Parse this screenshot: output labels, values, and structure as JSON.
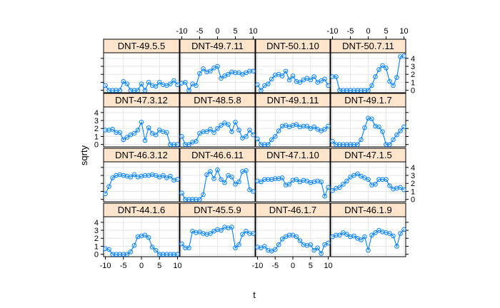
{
  "chart_data": {
    "type": "line",
    "xlabel": "t",
    "ylabel": "sqrty",
    "xlim": [
      -10.5,
      10.5
    ],
    "ylim": [
      -0.3,
      4.7
    ],
    "x_ticks": [
      -10,
      -5,
      0,
      5,
      10
    ],
    "y_ticks": [
      0,
      1,
      2,
      3,
      4
    ],
    "grid": true,
    "layout": {
      "rows": 4,
      "cols": 4
    },
    "colors": {
      "strip_bg": "#ffe5cc",
      "line": "#0080ff",
      "grid": "#e6e6e6"
    },
    "x": [
      -10,
      -9,
      -8,
      -7,
      -6,
      -5,
      -4,
      -3,
      -2,
      -1,
      0,
      1,
      2,
      3,
      4,
      5,
      6,
      7,
      8,
      9,
      10
    ],
    "panels": [
      {
        "name": "DNT-49.5.5",
        "values": [
          0.6,
          0,
          0,
          0,
          0,
          1.1,
          0.8,
          0,
          0,
          0,
          0.8,
          0,
          1.0,
          0.6,
          0.5,
          1.0,
          0.7,
          0.6,
          0.8,
          1.2,
          0.7
        ]
      },
      {
        "name": "DNT-49.7.11",
        "values": [
          0.9,
          1.0,
          0,
          0.8,
          0.6,
          2.1,
          2.7,
          2.3,
          2.4,
          2.8,
          3.0,
          1.5,
          1.8,
          2.0,
          2.3,
          2.2,
          2.2,
          2.0,
          2.2,
          2.4,
          2.4
        ]
      },
      {
        "name": "DNT-50.1.10",
        "values": [
          0.7,
          0,
          0.6,
          0.8,
          1.4,
          1.9,
          2.0,
          1.8,
          2.4,
          1.3,
          1.8,
          1.1,
          1.0,
          1.3,
          1.5,
          1.3,
          1.7,
          1.0,
          1.2,
          1.4,
          0.6
        ]
      },
      {
        "name": "DNT-50.7.11",
        "values": [
          1.7,
          1.7,
          0,
          0,
          0,
          0,
          0,
          0,
          0,
          0,
          0,
          0.6,
          1.7,
          2.6,
          3.1,
          2.8,
          1.1,
          0.6,
          1.6,
          4.2,
          4.3
        ]
      },
      {
        "name": "DNT-47.3.12",
        "values": [
          1.8,
          1.8,
          1.9,
          1.5,
          1.5,
          0.6,
          0.9,
          1.2,
          1.4,
          1.8,
          2.8,
          0.5,
          2.1,
          1.4,
          1.2,
          1.8,
          1.6,
          1.5,
          0,
          0,
          0
        ]
      },
      {
        "name": "DNT-48.5.8",
        "values": [
          1.0,
          0,
          0,
          0.3,
          0.4,
          1.4,
          1.6,
          1.6,
          1.9,
          1.5,
          2.0,
          2.4,
          2.7,
          2.5,
          1.6,
          2.8,
          1.8,
          0.8,
          1.0,
          1.8,
          1.2
        ]
      },
      {
        "name": "DNT-49.1.11",
        "values": [
          0.7,
          0,
          0,
          0,
          0.6,
          1.0,
          1.7,
          2.3,
          2.4,
          2.2,
          2.4,
          2.5,
          2.2,
          2.3,
          2.3,
          2.0,
          2.2,
          1.9,
          1.7,
          1.9,
          2.3
        ]
      },
      {
        "name": "DNT-49.1.7",
        "values": [
          0.4,
          0,
          0,
          0,
          0,
          0,
          0,
          0,
          0.6,
          2.1,
          3.3,
          3.2,
          2.3,
          2.2,
          1.6,
          0,
          0,
          0.6,
          1.2,
          1.7,
          2.2
        ]
      },
      {
        "name": "DNT-46.3.12",
        "values": [
          0.7,
          1.6,
          2.7,
          3.0,
          3.1,
          3.0,
          2.9,
          2.8,
          3.1,
          2.8,
          2.9,
          3.0,
          3.0,
          3.1,
          3.0,
          2.8,
          3.0,
          2.7,
          2.9,
          2.4,
          2.5
        ]
      },
      {
        "name": "DNT-46.6.11",
        "values": [
          0.8,
          0,
          0,
          0,
          0,
          0,
          0.6,
          3.1,
          3.5,
          2.6,
          3.7,
          2.5,
          2.1,
          3.0,
          2.8,
          1.9,
          2.2,
          3.5,
          3.6,
          1.2,
          1.0
        ]
      },
      {
        "name": "DNT-47.1.10",
        "values": [
          2.3,
          2.2,
          2.5,
          2.5,
          2.5,
          2.6,
          2.6,
          2.7,
          1.8,
          1.9,
          2.4,
          2.5,
          2.2,
          2.4,
          2.3,
          2.1,
          2.2,
          2.3,
          2.2,
          0.4,
          1.5
        ]
      },
      {
        "name": "DNT-47.1.5",
        "values": [
          1.1,
          1.4,
          1.5,
          1.9,
          2.3,
          2.8,
          3.0,
          3.2,
          2.9,
          2.7,
          2.5,
          1.8,
          1.9,
          2.5,
          2.5,
          2.5,
          1.7,
          1.3,
          1.4,
          1.5,
          1.2
        ]
      },
      {
        "name": "DNT-44.1.6",
        "values": [
          0.7,
          0.6,
          0,
          0,
          0,
          0,
          0,
          0.3,
          1.1,
          2.2,
          2.3,
          2.4,
          2.1,
          0.9,
          0.5,
          0,
          0,
          0,
          0,
          0,
          0
        ]
      },
      {
        "name": "DNT-45.5.9",
        "values": [
          1.3,
          0.8,
          0.8,
          2.9,
          2.7,
          2.8,
          2.6,
          2.5,
          2.6,
          2.9,
          3.1,
          3.0,
          3.4,
          3.3,
          3.4,
          0.8,
          1.2,
          2.5,
          2.9,
          2.6,
          2.6
        ]
      },
      {
        "name": "DNT-46.1.7",
        "values": [
          0.9,
          0.8,
          1.0,
          0.5,
          0.4,
          0.6,
          1.2,
          1.9,
          2.2,
          2.4,
          2.4,
          2.2,
          1.7,
          1.2,
          1.1,
          1.2,
          0.5,
          0.8,
          0.1,
          1.2,
          1.4
        ]
      },
      {
        "name": "DNT-46.1.9",
        "values": [
          2.2,
          2.4,
          2.4,
          2.7,
          2.5,
          2.2,
          2.3,
          2.0,
          1.8,
          2.2,
          0.5,
          2.4,
          2.7,
          3.0,
          2.8,
          2.7,
          2.6,
          2.3,
          1.0,
          2.6,
          3.1
        ]
      }
    ]
  }
}
